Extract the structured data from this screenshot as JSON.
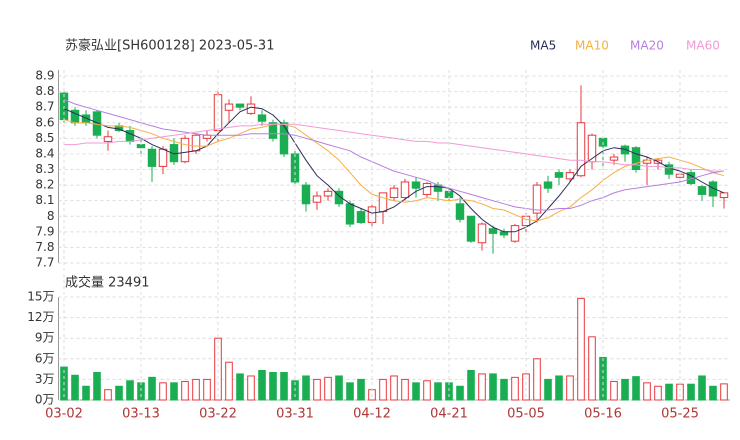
{
  "chart_data": [
    {
      "type": "candlestick",
      "title": "苏豪弘业[SH600128] 2023-05-31",
      "up_color": "#e8383d",
      "down_color": "#1aae52",
      "grid": true,
      "ylim": [
        7.7,
        8.9
      ],
      "yticks": [
        7.7,
        7.8,
        7.9,
        8,
        8.1,
        8.2,
        8.3,
        8.4,
        8.5,
        8.6,
        8.7,
        8.8,
        8.9
      ],
      "open": [
        8.79,
        8.68,
        8.65,
        8.67,
        8.48,
        8.58,
        8.55,
        8.46,
        8.43,
        8.32,
        8.46,
        8.35,
        8.42,
        8.5,
        8.55,
        8.68,
        8.72,
        8.66,
        8.65,
        8.6,
        8.6,
        8.4,
        8.2,
        8.09,
        8.13,
        8.16,
        8.08,
        8.03,
        7.96,
        8.03,
        8.12,
        8.12,
        8.22,
        8.14,
        8.2,
        8.16,
        8.08,
        8.0,
        7.83,
        7.92,
        7.9,
        7.84,
        7.94,
        8.02,
        8.22,
        8.28,
        8.24,
        8.26,
        8.35,
        8.5,
        8.36,
        8.45,
        8.44,
        8.34,
        8.34,
        8.33,
        8.25,
        8.28,
        8.19,
        8.22,
        8.12
      ],
      "high": [
        8.8,
        8.7,
        8.68,
        8.68,
        8.55,
        8.6,
        8.58,
        8.5,
        8.45,
        8.45,
        8.5,
        8.52,
        8.53,
        8.55,
        8.8,
        8.75,
        8.72,
        8.77,
        8.68,
        8.62,
        8.62,
        8.42,
        8.22,
        8.16,
        8.18,
        8.18,
        8.1,
        8.05,
        8.08,
        8.15,
        8.2,
        8.24,
        8.25,
        8.22,
        8.22,
        8.18,
        8.12,
        8.0,
        7.96,
        7.94,
        7.92,
        7.95,
        8.02,
        8.22,
        8.26,
        8.3,
        8.3,
        8.84,
        8.53,
        8.51,
        8.4,
        8.46,
        8.45,
        8.38,
        8.37,
        8.35,
        8.28,
        8.3,
        8.2,
        8.23,
        8.15
      ],
      "low": [
        8.6,
        8.58,
        8.58,
        8.5,
        8.42,
        8.54,
        8.46,
        8.4,
        8.22,
        8.27,
        8.33,
        8.34,
        8.4,
        8.48,
        8.48,
        8.6,
        8.68,
        8.65,
        8.58,
        8.48,
        8.38,
        8.2,
        8.03,
        8.04,
        8.1,
        8.06,
        7.93,
        7.95,
        7.93,
        7.95,
        8.1,
        8.1,
        8.12,
        8.12,
        8.1,
        8.1,
        7.96,
        7.83,
        7.78,
        7.76,
        7.86,
        7.83,
        7.9,
        7.96,
        8.15,
        8.2,
        8.22,
        8.25,
        8.3,
        8.3,
        8.33,
        8.35,
        8.28,
        8.2,
        8.3,
        8.24,
        8.22,
        8.2,
        8.1,
        8.06,
        8.05
      ],
      "close": [
        8.62,
        8.6,
        8.6,
        8.52,
        8.51,
        8.55,
        8.48,
        8.44,
        8.32,
        8.43,
        8.35,
        8.5,
        8.52,
        8.52,
        8.78,
        8.72,
        8.7,
        8.72,
        8.61,
        8.5,
        8.4,
        8.22,
        8.08,
        8.13,
        8.16,
        8.08,
        7.95,
        7.96,
        8.06,
        8.15,
        8.18,
        8.22,
        8.18,
        8.21,
        8.16,
        8.12,
        7.98,
        7.84,
        7.95,
        7.89,
        7.88,
        7.94,
        8.0,
        8.2,
        8.18,
        8.25,
        8.28,
        8.6,
        8.52,
        8.45,
        8.38,
        8.4,
        8.3,
        8.36,
        8.36,
        8.27,
        8.27,
        8.21,
        8.14,
        8.13,
        8.15
      ],
      "series": [
        {
          "name": "MA5",
          "color": "#2b2d5a",
          "values": [
            8.69,
            8.66,
            8.63,
            8.6,
            8.57,
            8.56,
            8.53,
            8.5,
            8.46,
            8.43,
            8.4,
            8.41,
            8.42,
            8.45,
            8.53,
            8.6,
            8.67,
            8.7,
            8.69,
            8.65,
            8.58,
            8.47,
            8.36,
            8.26,
            8.2,
            8.13,
            8.08,
            8.05,
            8.02,
            8.03,
            8.06,
            8.11,
            8.16,
            8.19,
            8.19,
            8.18,
            8.13,
            8.05,
            7.98,
            7.93,
            7.9,
            7.9,
            7.93,
            7.97,
            8.05,
            8.13,
            8.22,
            8.32,
            8.37,
            8.42,
            8.44,
            8.43,
            8.4,
            8.38,
            8.35,
            8.31,
            8.29,
            8.26,
            8.22,
            8.18,
            8.15
          ]
        },
        {
          "name": "MA10",
          "color": "#f5b041",
          "values": [
            8.62,
            8.6,
            8.6,
            8.59,
            8.58,
            8.58,
            8.57,
            8.55,
            8.53,
            8.5,
            8.48,
            8.46,
            8.45,
            8.45,
            8.48,
            8.5,
            8.53,
            8.56,
            8.57,
            8.59,
            8.59,
            8.57,
            8.52,
            8.47,
            8.42,
            8.36,
            8.28,
            8.2,
            8.14,
            8.12,
            8.1,
            8.09,
            8.1,
            8.12,
            8.11,
            8.1,
            8.11,
            8.1,
            8.08,
            8.05,
            8.04,
            8.01,
            7.98,
            7.97,
            7.99,
            8.03,
            8.06,
            8.12,
            8.17,
            8.23,
            8.28,
            8.32,
            8.34,
            8.36,
            8.37,
            8.38,
            8.36,
            8.34,
            8.31,
            8.28,
            8.26
          ]
        },
        {
          "name": "MA20",
          "color": "#b77fe0",
          "values": [
            8.75,
            8.72,
            8.7,
            8.68,
            8.66,
            8.64,
            8.62,
            8.6,
            8.58,
            8.56,
            8.55,
            8.54,
            8.53,
            8.52,
            8.52,
            8.52,
            8.52,
            8.53,
            8.53,
            8.53,
            8.53,
            8.52,
            8.5,
            8.48,
            8.46,
            8.44,
            8.42,
            8.38,
            8.35,
            8.32,
            8.29,
            8.27,
            8.25,
            8.23,
            8.2,
            8.18,
            8.16,
            8.14,
            8.12,
            8.1,
            8.08,
            8.06,
            8.05,
            8.04,
            8.04,
            8.05,
            8.05,
            8.07,
            8.1,
            8.12,
            8.15,
            8.17,
            8.18,
            8.19,
            8.2,
            8.21,
            8.22,
            8.24,
            8.26,
            8.28,
            8.29
          ]
        },
        {
          "name": "MA60",
          "color": "#f29ad6",
          "values": [
            8.46,
            8.46,
            8.47,
            8.47,
            8.47,
            8.48,
            8.48,
            8.49,
            8.5,
            8.51,
            8.52,
            8.53,
            8.54,
            8.55,
            8.56,
            8.57,
            8.58,
            8.58,
            8.59,
            8.59,
            8.59,
            8.59,
            8.58,
            8.57,
            8.56,
            8.55,
            8.54,
            8.53,
            8.52,
            8.51,
            8.5,
            8.49,
            8.48,
            8.48,
            8.47,
            8.47,
            8.46,
            8.45,
            8.44,
            8.43,
            8.42,
            8.41,
            8.4,
            8.39,
            8.38,
            8.37,
            8.36,
            8.36,
            8.35,
            8.35,
            8.34,
            8.33,
            8.33,
            8.32,
            8.32,
            8.31,
            8.31,
            8.3,
            8.3,
            8.29,
            8.29
          ]
        }
      ]
    },
    {
      "type": "bar",
      "title": "成交量 23491",
      "grid": true,
      "ylim": [
        0,
        15
      ],
      "yticks": [
        {
          "value": 0,
          "label": "0万"
        },
        {
          "value": 3,
          "label": "3万"
        },
        {
          "value": 6,
          "label": "6万"
        },
        {
          "value": 9,
          "label": "9万"
        },
        {
          "value": 12,
          "label": "12万"
        },
        {
          "value": 15,
          "label": "15万"
        }
      ],
      "categories": [
        "03-02",
        null,
        null,
        null,
        null,
        null,
        null,
        "03-13",
        null,
        null,
        null,
        null,
        null,
        null,
        "03-22",
        null,
        null,
        null,
        null,
        null,
        null,
        "03-31",
        null,
        null,
        null,
        null,
        null,
        null,
        "04-12",
        null,
        null,
        null,
        null,
        null,
        null,
        "04-21",
        null,
        null,
        null,
        null,
        null,
        null,
        "05-05",
        null,
        null,
        null,
        null,
        null,
        null,
        "05-16",
        null,
        null,
        null,
        null,
        null,
        null,
        "05-25",
        null,
        null,
        null,
        null
      ],
      "values": [
        4.8,
        3.6,
        2.0,
        4.0,
        1.5,
        2.0,
        2.8,
        2.5,
        3.3,
        2.5,
        2.5,
        2.7,
        3.0,
        3.0,
        9.0,
        5.5,
        3.8,
        3.5,
        4.3,
        4.0,
        4.0,
        2.8,
        3.5,
        3.0,
        3.3,
        3.5,
        2.5,
        3.0,
        1.5,
        3.0,
        3.5,
        3.0,
        2.5,
        2.8,
        2.5,
        2.5,
        2.0,
        4.3,
        3.8,
        3.8,
        3.0,
        3.3,
        3.8,
        6.0,
        3.0,
        3.5,
        3.5,
        14.8,
        9.2,
        6.2,
        2.7,
        3.0,
        3.4,
        2.5,
        2.0,
        2.3,
        2.3,
        2.3,
        3.5,
        2.0,
        2.3491
      ]
    }
  ]
}
